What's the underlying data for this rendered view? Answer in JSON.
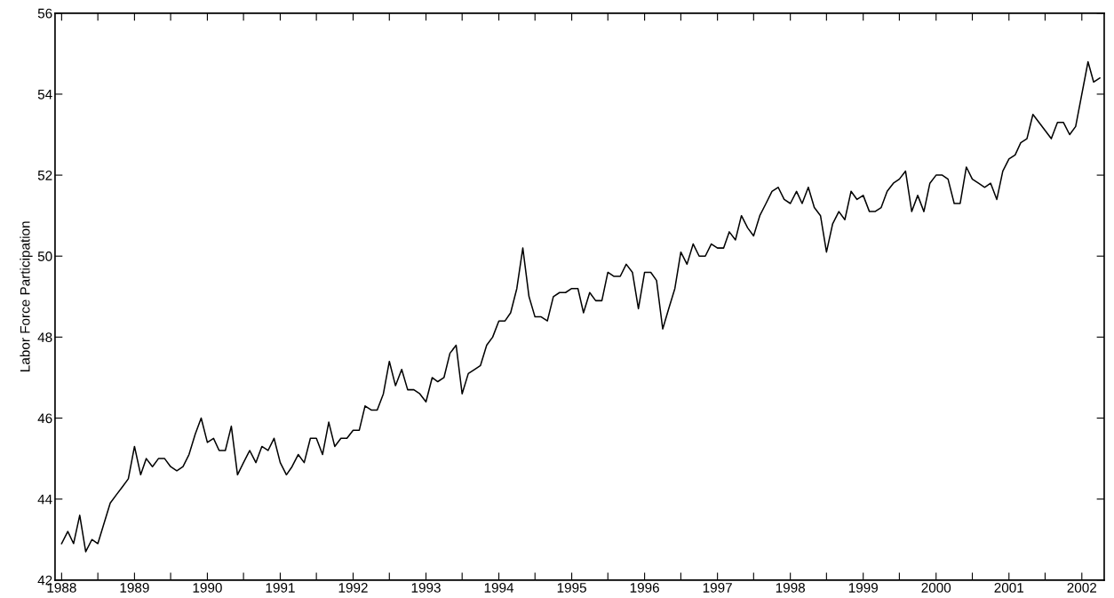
{
  "chart_data": {
    "type": "line",
    "ylabel": "Labor Force Participation",
    "x": [
      "1988-01",
      "1988-02",
      "1988-03",
      "1988-04",
      "1988-05",
      "1988-06",
      "1988-07",
      "1988-08",
      "1988-09",
      "1988-10",
      "1988-11",
      "1988-12",
      "1989-01",
      "1989-02",
      "1989-03",
      "1989-04",
      "1989-05",
      "1989-06",
      "1989-07",
      "1989-08",
      "1989-09",
      "1989-10",
      "1989-11",
      "1989-12",
      "1990-01",
      "1990-02",
      "1990-03",
      "1990-04",
      "1990-05",
      "1990-06",
      "1990-07",
      "1990-08",
      "1990-09",
      "1990-10",
      "1990-11",
      "1990-12",
      "1991-01",
      "1991-02",
      "1991-03",
      "1991-04",
      "1991-05",
      "1991-06",
      "1991-07",
      "1991-08",
      "1991-09",
      "1991-10",
      "1991-11",
      "1991-12",
      "1992-01",
      "1992-02",
      "1992-03",
      "1992-04",
      "1992-05",
      "1992-06",
      "1992-07",
      "1992-08",
      "1992-09",
      "1992-10",
      "1992-11",
      "1992-12",
      "1993-01",
      "1993-02",
      "1993-03",
      "1993-04",
      "1993-05",
      "1993-06",
      "1993-07",
      "1993-08",
      "1993-09",
      "1993-10",
      "1993-11",
      "1993-12",
      "1994-01",
      "1994-02",
      "1994-03",
      "1994-04",
      "1994-05",
      "1994-06",
      "1994-07",
      "1994-08",
      "1994-09",
      "1994-10",
      "1994-11",
      "1994-12",
      "1995-01",
      "1995-02",
      "1995-03",
      "1995-04",
      "1995-05",
      "1995-06",
      "1995-07",
      "1995-08",
      "1995-09",
      "1995-10",
      "1995-11",
      "1995-12",
      "1996-01",
      "1996-02",
      "1996-03",
      "1996-04",
      "1996-05",
      "1996-06",
      "1996-07",
      "1996-08",
      "1996-09",
      "1996-10",
      "1996-11",
      "1996-12",
      "1997-01",
      "1997-02",
      "1997-03",
      "1997-04",
      "1997-05",
      "1997-06",
      "1997-07",
      "1997-08",
      "1997-09",
      "1997-10",
      "1997-11",
      "1997-12",
      "1998-01",
      "1998-02",
      "1998-03",
      "1998-04",
      "1998-05",
      "1998-06",
      "1998-07",
      "1998-08",
      "1998-09",
      "1998-10",
      "1998-11",
      "1998-12",
      "1999-01",
      "1999-02",
      "1999-03",
      "1999-04",
      "1999-05",
      "1999-06",
      "1999-07",
      "1999-08",
      "1999-09",
      "1999-10",
      "1999-11",
      "1999-12",
      "2000-01",
      "2000-02",
      "2000-03",
      "2000-04",
      "2000-05",
      "2000-06",
      "2000-07",
      "2000-08",
      "2000-09",
      "2000-10",
      "2000-11",
      "2000-12",
      "2001-01",
      "2001-02",
      "2001-03",
      "2001-04",
      "2001-05",
      "2001-08",
      "2001-09",
      "2001-10",
      "2001-11",
      "2001-12",
      "2002-02",
      "2002-03",
      "2002-04"
    ],
    "series": [
      {
        "color": "#000000",
        "values": [
          42.9,
          43.2,
          42.9,
          43.6,
          42.7,
          43.0,
          42.9,
          43.4,
          43.9,
          44.1,
          44.3,
          44.5,
          45.3,
          44.6,
          45.0,
          44.8,
          45.0,
          45.0,
          44.8,
          44.7,
          44.8,
          45.1,
          45.6,
          46.0,
          45.4,
          45.5,
          45.2,
          45.2,
          45.8,
          44.6,
          44.9,
          45.2,
          44.9,
          45.3,
          45.2,
          45.5,
          44.9,
          44.6,
          44.8,
          45.1,
          44.9,
          45.5,
          45.5,
          45.1,
          45.9,
          45.3,
          45.5,
          45.5,
          45.7,
          45.7,
          46.3,
          46.2,
          46.2,
          46.6,
          47.4,
          46.8,
          47.2,
          46.7,
          46.7,
          46.6,
          46.4,
          47.0,
          46.9,
          47.0,
          47.6,
          47.8,
          46.6,
          47.1,
          47.2,
          47.3,
          47.8,
          48.0,
          48.4,
          48.4,
          48.6,
          49.2,
          50.2,
          49.0,
          48.5,
          48.5,
          48.4,
          49.0,
          49.1,
          49.1,
          49.2,
          49.2,
          48.6,
          49.1,
          48.9,
          48.9,
          49.6,
          49.5,
          49.5,
          49.8,
          49.6,
          48.7,
          49.6,
          49.6,
          49.4,
          48.2,
          48.7,
          49.2,
          50.1,
          49.8,
          50.3,
          50.0,
          50.0,
          50.3,
          50.2,
          50.2,
          50.6,
          50.4,
          51.0,
          50.7,
          50.5,
          51.0,
          51.3,
          51.6,
          51.7,
          51.4,
          51.3,
          51.6,
          51.3,
          51.7,
          51.2,
          51.0,
          50.1,
          50.8,
          51.1,
          50.9,
          51.6,
          51.4,
          51.5,
          51.1,
          51.1,
          51.2,
          51.6,
          51.8,
          51.9,
          52.1,
          51.1,
          51.5,
          51.1,
          51.8,
          52.0,
          52.0,
          51.9,
          51.3,
          51.3,
          52.2,
          51.9,
          51.8,
          51.7,
          51.8,
          51.4,
          52.1,
          52.4,
          52.5,
          52.8,
          52.9,
          53.5,
          52.9,
          53.3,
          53.3,
          53.0,
          53.2,
          54.8,
          54.3,
          54.4
        ]
      }
    ],
    "xlim": [
      "1987-11-29",
      "2002-04-23"
    ],
    "xticks": [
      {
        "value": "1988",
        "label": "1988"
      },
      {
        "value": "1988-07",
        "label": null
      },
      {
        "value": "1989",
        "label": "1989"
      },
      {
        "value": "1989-07",
        "label": null
      },
      {
        "value": "1990",
        "label": "1990"
      },
      {
        "value": "1990-07",
        "label": null
      },
      {
        "value": "1991",
        "label": "1991"
      },
      {
        "value": "1991-07",
        "label": null
      },
      {
        "value": "1992",
        "label": "1992"
      },
      {
        "value": "1992-07",
        "label": null
      },
      {
        "value": "1993",
        "label": "1993"
      },
      {
        "value": "1993-07",
        "label": null
      },
      {
        "value": "1994",
        "label": "1994"
      },
      {
        "value": "1994-07",
        "label": null
      },
      {
        "value": "1995",
        "label": "1995"
      },
      {
        "value": "1995-07",
        "label": null
      },
      {
        "value": "1996",
        "label": "1996"
      },
      {
        "value": "1996-07",
        "label": null
      },
      {
        "value": "1997",
        "label": "1997"
      },
      {
        "value": "1997-07",
        "label": null
      },
      {
        "value": "1998",
        "label": "1998"
      },
      {
        "value": "1998-07",
        "label": null
      },
      {
        "value": "1999",
        "label": "1999"
      },
      {
        "value": "1999-07",
        "label": null
      },
      {
        "value": "2000",
        "label": "2000"
      },
      {
        "value": "2000-07",
        "label": null
      },
      {
        "value": "2001",
        "label": "2001"
      },
      {
        "value": "2001-07",
        "label": null
      },
      {
        "value": "2002",
        "label": "2002"
      }
    ],
    "ylim": [
      42,
      56
    ],
    "yticks": [
      42,
      44,
      46,
      48,
      50,
      52,
      54,
      56
    ],
    "marker": "none",
    "line_style": "solid"
  }
}
